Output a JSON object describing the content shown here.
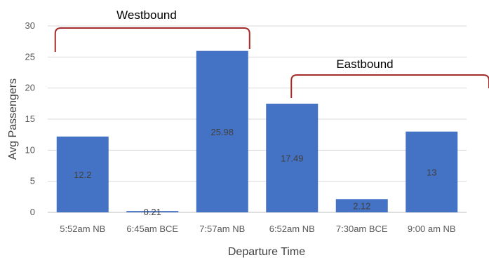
{
  "chart_data": {
    "type": "bar",
    "title": "",
    "xlabel": "Departure Time",
    "ylabel": "Avg Passengers",
    "ylim": [
      0,
      30
    ],
    "yticks": [
      0,
      5,
      10,
      15,
      20,
      25,
      30
    ],
    "grid": true,
    "categories": [
      "5:52am NB",
      "6:45am BCE",
      "7:57am NB",
      "6:52am NB",
      "7:30am BCE",
      "9:00 am NB"
    ],
    "values": [
      12.2,
      0.21,
      25.98,
      17.49,
      2.12,
      13
    ],
    "data_labels": [
      "12.2",
      "0.21",
      "25.98",
      "17.49",
      "2.12",
      "13"
    ],
    "bar_color": "#4472C4",
    "group_color": "#A52A2A",
    "groups": [
      {
        "label": "Westbound",
        "start": 0,
        "end": 2
      },
      {
        "label": "Eastbound",
        "start": 3,
        "end": 5
      }
    ]
  }
}
